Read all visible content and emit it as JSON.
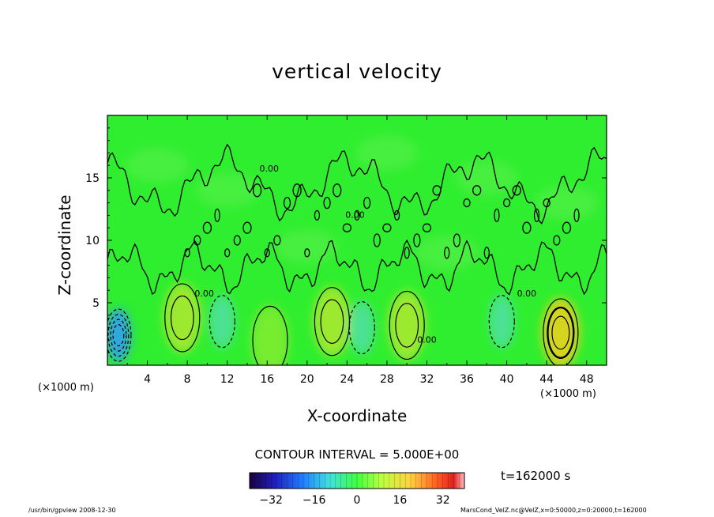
{
  "chart_data": {
    "type": "contour",
    "title": "vertical velocity",
    "xlabel": "X-coordinate",
    "ylabel": "Z-coordinate",
    "x_unit_label": "(×1000 m)",
    "x_unit_label_right": "(×1000 m)",
    "xlim": [
      0,
      50
    ],
    "ylim": [
      0,
      20
    ],
    "x_ticks": [
      4,
      8,
      12,
      16,
      20,
      24,
      28,
      32,
      36,
      40,
      44,
      48
    ],
    "y_ticks": [
      5,
      10,
      15
    ],
    "x_tick_labels": [
      "4",
      "8",
      "12",
      "16",
      "20",
      "24",
      "28",
      "32",
      "36",
      "40",
      "44",
      "48"
    ],
    "y_tick_labels": [
      "5",
      "10",
      "15"
    ],
    "contour_interval_text": "CONTOUR INTERVAL = 5.000E+00",
    "contour_interval": 5,
    "colorbar": {
      "min": -40,
      "max": 40,
      "ticks": [
        -32,
        -16,
        0,
        16,
        32
      ],
      "tick_labels": [
        "−32",
        "−16",
        "0",
        "16",
        "32"
      ]
    },
    "contour_labels": [
      {
        "x": 16.2,
        "z": 15.5,
        "text": "0.00"
      },
      {
        "x": 24.8,
        "z": 11.8,
        "text": "0.00"
      },
      {
        "x": 9.7,
        "z": 5.5,
        "text": "0.00"
      },
      {
        "x": 32.0,
        "z": 1.8,
        "text": "0.00"
      },
      {
        "x": 42.0,
        "z": 5.5,
        "text": "0.00"
      }
    ],
    "features": [
      {
        "kind": "updraft",
        "x": 45.4,
        "z": 2.6,
        "peak": 15
      },
      {
        "kind": "updraft",
        "x": 7.5,
        "z": 3.8,
        "peak": 7
      },
      {
        "kind": "updraft",
        "x": 22.5,
        "z": 3.5,
        "peak": 8
      },
      {
        "kind": "updraft",
        "x": 30.0,
        "z": 3.2,
        "peak": 6
      },
      {
        "kind": "updraft",
        "x": 16.3,
        "z": 2.0,
        "peak": 5
      },
      {
        "kind": "downdraft",
        "x": 1.1,
        "z": 2.4,
        "peak": -18
      },
      {
        "kind": "downdraft",
        "x": 25.5,
        "z": 3.0,
        "peak": -3
      },
      {
        "kind": "downdraft",
        "x": 11.5,
        "z": 3.5,
        "peak": -3
      },
      {
        "kind": "downdraft",
        "x": 39.5,
        "z": 3.5,
        "peak": -3
      }
    ]
  },
  "annotations": {
    "time": "t=162000 s",
    "footer_left": "/usr/bin/gpview   2008-12-30",
    "footer_right": "MarsCond_VelZ.nc@VelZ,x=0:50000,z=0:20000,t=162000"
  }
}
